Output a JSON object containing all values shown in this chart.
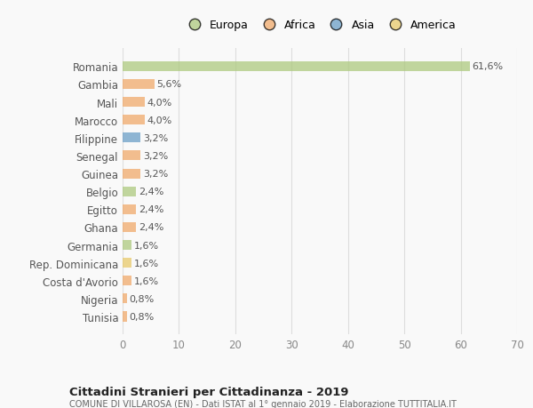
{
  "categories": [
    "Romania",
    "Gambia",
    "Mali",
    "Marocco",
    "Filippine",
    "Senegal",
    "Guinea",
    "Belgio",
    "Egitto",
    "Ghana",
    "Germania",
    "Rep. Dominicana",
    "Costa d'Avorio",
    "Nigeria",
    "Tunisia"
  ],
  "values": [
    61.6,
    5.6,
    4.0,
    4.0,
    3.2,
    3.2,
    3.2,
    2.4,
    2.4,
    2.4,
    1.6,
    1.6,
    1.6,
    0.8,
    0.8
  ],
  "labels": [
    "61,6%",
    "5,6%",
    "4,0%",
    "4,0%",
    "3,2%",
    "3,2%",
    "3,2%",
    "2,4%",
    "2,4%",
    "2,4%",
    "1,6%",
    "1,6%",
    "1,6%",
    "0,8%",
    "0,8%"
  ],
  "colors": [
    "#adc97e",
    "#f0a96a",
    "#f0a96a",
    "#f0a96a",
    "#6b9ec7",
    "#f0a96a",
    "#f0a96a",
    "#adc97e",
    "#f0a96a",
    "#f0a96a",
    "#adc97e",
    "#e8c96a",
    "#f0a96a",
    "#f0a96a",
    "#f0a96a"
  ],
  "legend_labels": [
    "Europa",
    "Africa",
    "Asia",
    "America"
  ],
  "legend_colors": [
    "#adc97e",
    "#f0a96a",
    "#6b9ec7",
    "#e8c96a"
  ],
  "xlim": [
    0,
    70
  ],
  "xticks": [
    0,
    10,
    20,
    30,
    40,
    50,
    60,
    70
  ],
  "title": "Cittadini Stranieri per Cittadinanza - 2019",
  "subtitle": "COMUNE DI VILLAROSA (EN) - Dati ISTAT al 1° gennaio 2019 - Elaborazione TUTTITALIA.IT",
  "bg_color": "#f9f9f9",
  "bar_alpha": 0.75,
  "grid_color": "#dddddd",
  "label_fontsize": 8.0,
  "ytick_fontsize": 8.5,
  "xtick_fontsize": 8.5
}
